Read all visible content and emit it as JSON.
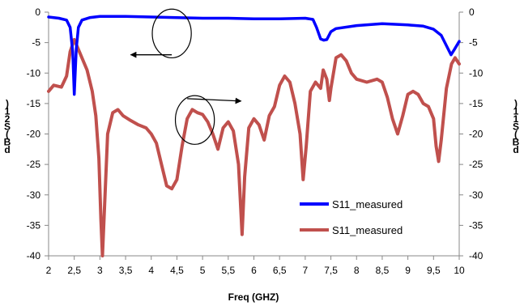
{
  "chart_data": {
    "type": "line",
    "xlabel": "Freq (GHZ)",
    "ylabel_left": ")\n1\n2\nS\n(\nB\nd",
    "ylabel_right": ")\n1\n1\nS\n(\nB\nd",
    "xlim": [
      2,
      10
    ],
    "ylim_left": [
      -40,
      0
    ],
    "ylim_right": [
      -40,
      0
    ],
    "x_ticks": [
      "2",
      "2,5",
      "3",
      "3,5",
      "4",
      "4,5",
      "5",
      "5,5",
      "6",
      "6,5",
      "7",
      "7,5",
      "8",
      "8,5",
      "9",
      "9,5",
      "10"
    ],
    "y_ticks": [
      "0",
      "-5",
      "-10",
      "-15",
      "-20",
      "-25",
      "-30",
      "-35",
      "-40"
    ],
    "grid": false,
    "legend_position": "bottom-right",
    "series": [
      {
        "name": "S11_measured",
        "axis": "left",
        "color": "#0000ff",
        "points": [
          [
            2.0,
            -0.8
          ],
          [
            2.2,
            -1.0
          ],
          [
            2.35,
            -1.3
          ],
          [
            2.42,
            -2.5
          ],
          [
            2.47,
            -6.5
          ],
          [
            2.5,
            -13.5
          ],
          [
            2.54,
            -6.0
          ],
          [
            2.58,
            -2.5
          ],
          [
            2.65,
            -1.3
          ],
          [
            2.8,
            -0.9
          ],
          [
            3.0,
            -0.7
          ],
          [
            3.5,
            -0.7
          ],
          [
            4.0,
            -0.8
          ],
          [
            4.5,
            -0.9
          ],
          [
            5.0,
            -1.0
          ],
          [
            5.5,
            -1.0
          ],
          [
            6.0,
            -1.1
          ],
          [
            6.5,
            -1.1
          ],
          [
            7.0,
            -1.0
          ],
          [
            7.15,
            -1.2
          ],
          [
            7.22,
            -2.5
          ],
          [
            7.3,
            -4.4
          ],
          [
            7.36,
            -4.6
          ],
          [
            7.42,
            -4.5
          ],
          [
            7.5,
            -3.2
          ],
          [
            7.6,
            -2.7
          ],
          [
            8.0,
            -2.2
          ],
          [
            8.5,
            -1.9
          ],
          [
            9.0,
            -2.1
          ],
          [
            9.3,
            -2.3
          ],
          [
            9.5,
            -2.8
          ],
          [
            9.65,
            -3.8
          ],
          [
            9.75,
            -5.5
          ],
          [
            9.84,
            -7.0
          ],
          [
            9.9,
            -6.2
          ],
          [
            10.0,
            -4.8
          ]
        ]
      },
      {
        "name": "S11_measured",
        "axis": "right",
        "color": "#c0504d",
        "points": [
          [
            2.0,
            -13.0
          ],
          [
            2.1,
            -12.0
          ],
          [
            2.25,
            -12.3
          ],
          [
            2.35,
            -10.5
          ],
          [
            2.42,
            -6.5
          ],
          [
            2.5,
            -4.5
          ],
          [
            2.6,
            -6.5
          ],
          [
            2.75,
            -9.5
          ],
          [
            2.85,
            -13.0
          ],
          [
            2.92,
            -17.0
          ],
          [
            2.98,
            -24.0
          ],
          [
            3.02,
            -34.0
          ],
          [
            3.05,
            -40.0
          ],
          [
            3.1,
            -30.0
          ],
          [
            3.15,
            -20.0
          ],
          [
            3.25,
            -16.5
          ],
          [
            3.35,
            -16.0
          ],
          [
            3.45,
            -17.0
          ],
          [
            3.6,
            -17.8
          ],
          [
            3.75,
            -18.5
          ],
          [
            3.9,
            -19.0
          ],
          [
            4.0,
            -20.0
          ],
          [
            4.1,
            -21.5
          ],
          [
            4.2,
            -25.0
          ],
          [
            4.3,
            -28.5
          ],
          [
            4.4,
            -29.0
          ],
          [
            4.5,
            -27.5
          ],
          [
            4.6,
            -22.0
          ],
          [
            4.7,
            -17.5
          ],
          [
            4.8,
            -16.0
          ],
          [
            4.9,
            -16.5
          ],
          [
            5.0,
            -16.8
          ],
          [
            5.1,
            -18.0
          ],
          [
            5.2,
            -20.0
          ],
          [
            5.3,
            -22.5
          ],
          [
            5.4,
            -19.0
          ],
          [
            5.5,
            -18.0
          ],
          [
            5.6,
            -19.5
          ],
          [
            5.7,
            -25.0
          ],
          [
            5.77,
            -36.5
          ],
          [
            5.82,
            -27.0
          ],
          [
            5.9,
            -19.0
          ],
          [
            6.0,
            -17.5
          ],
          [
            6.1,
            -18.5
          ],
          [
            6.2,
            -21.0
          ],
          [
            6.3,
            -17.0
          ],
          [
            6.4,
            -15.5
          ],
          [
            6.5,
            -12.0
          ],
          [
            6.6,
            -10.5
          ],
          [
            6.7,
            -11.5
          ],
          [
            6.8,
            -15.0
          ],
          [
            6.9,
            -20.0
          ],
          [
            6.96,
            -27.5
          ],
          [
            7.02,
            -22.0
          ],
          [
            7.1,
            -13.0
          ],
          [
            7.2,
            -11.5
          ],
          [
            7.3,
            -12.5
          ],
          [
            7.35,
            -9.5
          ],
          [
            7.42,
            -11.0
          ],
          [
            7.47,
            -14.5
          ],
          [
            7.5,
            -12.5
          ],
          [
            7.6,
            -7.5
          ],
          [
            7.7,
            -7.0
          ],
          [
            7.8,
            -8.0
          ],
          [
            7.9,
            -10.0
          ],
          [
            8.0,
            -11.0
          ],
          [
            8.2,
            -11.5
          ],
          [
            8.4,
            -11.0
          ],
          [
            8.5,
            -11.5
          ],
          [
            8.6,
            -14.0
          ],
          [
            8.7,
            -17.5
          ],
          [
            8.8,
            -20.0
          ],
          [
            8.9,
            -17.0
          ],
          [
            9.0,
            -13.5
          ],
          [
            9.1,
            -13.0
          ],
          [
            9.2,
            -13.5
          ],
          [
            9.3,
            -15.0
          ],
          [
            9.4,
            -15.5
          ],
          [
            9.5,
            -17.5
          ],
          [
            9.55,
            -22.0
          ],
          [
            9.6,
            -24.5
          ],
          [
            9.65,
            -21.0
          ],
          [
            9.75,
            -12.5
          ],
          [
            9.85,
            -8.5
          ],
          [
            9.92,
            -7.5
          ],
          [
            10.0,
            -8.5
          ]
        ]
      }
    ],
    "annotations": [
      {
        "type": "circle",
        "x": 4.4,
        "y": -3.5,
        "rx": 0.38,
        "ry": 4.0,
        "axis": "left"
      },
      {
        "type": "arrow",
        "x1": 4.4,
        "y1": -7.0,
        "x2": 3.6,
        "y2": -7.0,
        "axis": "left"
      },
      {
        "type": "circle",
        "x": 4.85,
        "y": -17.7,
        "rx": 0.38,
        "ry": 4.0,
        "axis": "right"
      },
      {
        "type": "arrow",
        "x1": 4.7,
        "y1": -14.2,
        "x2": 5.75,
        "y2": -14.6,
        "axis": "right"
      }
    ]
  }
}
